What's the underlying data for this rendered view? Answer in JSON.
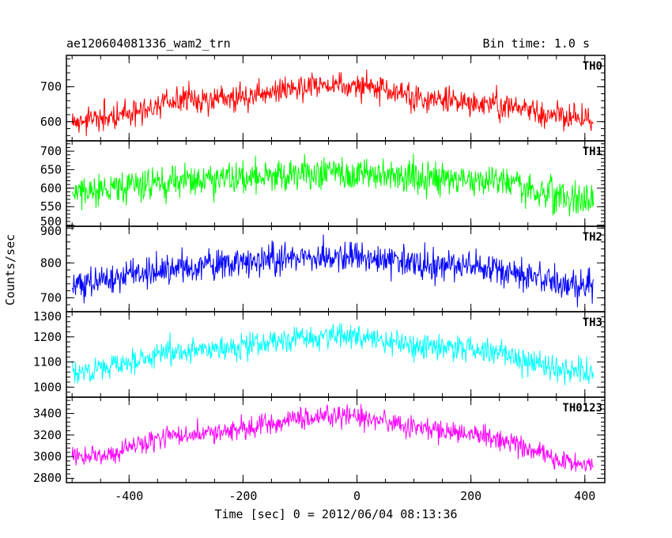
{
  "title_left": "ae120604081336_wam2_trn",
  "title_right": "Bin time: 1.0 s",
  "chart_data": {
    "type": "line",
    "xlabel": "Time [sec] 0 = 2012/06/04 08:13:36",
    "ylabel": "Counts/sec",
    "xlim": [
      -510,
      435
    ],
    "xticks": [
      -400,
      -200,
      0,
      200,
      400
    ],
    "panels": [
      {
        "name": "TH0",
        "color": "#ff0000",
        "ylim": [
          545,
          790
        ],
        "yticks": [
          600,
          700
        ],
        "trend": [
          600,
          665,
          705,
          655,
          610
        ],
        "noise": 28
      },
      {
        "name": "TH1",
        "color": "#00ff00",
        "ylim": [
          497,
          728
        ],
        "yticks": [
          500,
          550,
          600,
          650,
          700
        ],
        "trend": [
          590,
          625,
          640,
          625,
          570
        ],
        "noise": 32
      },
      {
        "name": "TH2",
        "color": "#0000ff",
        "ylim": [
          660,
          905
        ],
        "yticks": [
          700,
          800,
          900
        ],
        "trend": [
          745,
          790,
          820,
          790,
          735
        ],
        "noise": 32
      },
      {
        "name": "TH3",
        "color": "#00ffff",
        "ylim": [
          960,
          1300
        ],
        "yticks": [
          1000,
          1100,
          1200,
          1300
        ],
        "trend": [
          1060,
          1150,
          1200,
          1150,
          1060
        ],
        "noise": 38
      },
      {
        "name": "TH0123",
        "color": "#ff00ff",
        "ylim": [
          2760,
          3550
        ],
        "yticks": [
          2800,
          3000,
          3200,
          3400
        ],
        "trend": [
          2980,
          3220,
          3380,
          3220,
          2920
        ],
        "noise": 70
      }
    ]
  }
}
